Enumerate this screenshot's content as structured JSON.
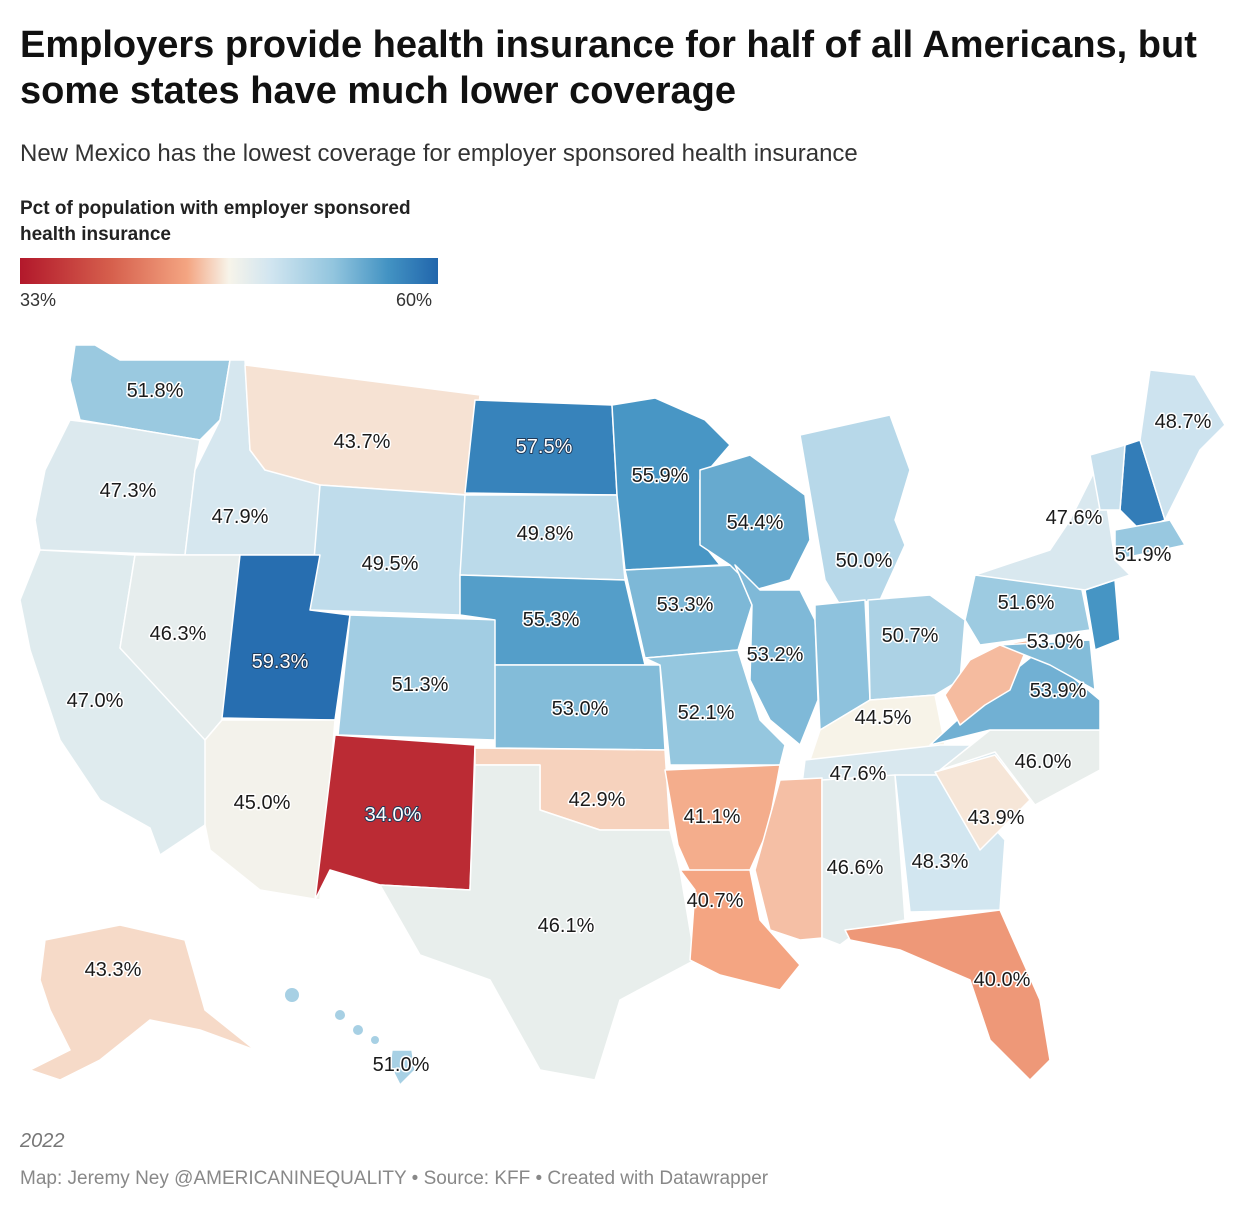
{
  "title": "Employers provide health insurance for half of all Americans, but some states have much lower coverage",
  "subtitle": "New Mexico has the lowest coverage for employer sponsored health insurance",
  "legend": {
    "title": "Pct of population with employer sponsored health insurance",
    "min_label": "33%",
    "max_label": "60%",
    "colors": [
      "#b2182b",
      "#d6604d",
      "#f4a582",
      "#f7f4ea",
      "#d1e5f0",
      "#92c5de",
      "#4393c3",
      "#2166ac"
    ]
  },
  "footer": {
    "year": "2022",
    "credit": "Map: Jeremy Ney @AMERICANINEQUALITY • Source: KFF • Created with Datawrapper"
  },
  "states": [
    {
      "id": "WA",
      "value": 51.8,
      "label": "51.8%"
    },
    {
      "id": "OR",
      "value": 47.3,
      "label": "47.3%"
    },
    {
      "id": "CA",
      "value": 47.0,
      "label": "47.0%"
    },
    {
      "id": "ID",
      "value": 47.9,
      "label": "47.9%"
    },
    {
      "id": "NV",
      "value": 46.3,
      "label": "46.3%"
    },
    {
      "id": "MT",
      "value": 43.7,
      "label": "43.7%"
    },
    {
      "id": "WY",
      "value": 49.5,
      "label": "49.5%"
    },
    {
      "id": "UT",
      "value": 59.3,
      "label": "59.3%"
    },
    {
      "id": "AZ",
      "value": 45.0,
      "label": "45.0%"
    },
    {
      "id": "CO",
      "value": 51.3,
      "label": "51.3%"
    },
    {
      "id": "NM",
      "value": 34.0,
      "label": "34.0%"
    },
    {
      "id": "ND",
      "value": 57.5,
      "label": "57.5%"
    },
    {
      "id": "SD",
      "value": 49.8,
      "label": "49.8%"
    },
    {
      "id": "NE",
      "value": 55.3,
      "label": "55.3%"
    },
    {
      "id": "KS",
      "value": 53.0,
      "label": "53.0%"
    },
    {
      "id": "OK",
      "value": 42.9,
      "label": "42.9%"
    },
    {
      "id": "TX",
      "value": 46.1,
      "label": "46.1%"
    },
    {
      "id": "MN",
      "value": 55.9,
      "label": "55.9%"
    },
    {
      "id": "IA",
      "value": 53.3,
      "label": "53.3%"
    },
    {
      "id": "MO",
      "value": 52.1,
      "label": "52.1%"
    },
    {
      "id": "AR",
      "value": 41.1,
      "label": "41.1%"
    },
    {
      "id": "LA",
      "value": 40.7,
      "label": "40.7%"
    },
    {
      "id": "WI",
      "value": 54.4,
      "label": "54.4%"
    },
    {
      "id": "IL",
      "value": 53.2,
      "label": "53.2%"
    },
    {
      "id": "MI",
      "value": 50.0,
      "label": "50.0%"
    },
    {
      "id": "IN",
      "value": null,
      "label": ""
    },
    {
      "id": "OH",
      "value": 50.7,
      "label": "50.7%"
    },
    {
      "id": "KY",
      "value": 44.5,
      "label": "44.5%"
    },
    {
      "id": "TN",
      "value": 47.6,
      "label": "47.6%"
    },
    {
      "id": "MS",
      "value": null,
      "label": ""
    },
    {
      "id": "AL",
      "value": 46.6,
      "label": "46.6%"
    },
    {
      "id": "GA",
      "value": 48.3,
      "label": "48.3%"
    },
    {
      "id": "FL",
      "value": 40.0,
      "label": "40.0%"
    },
    {
      "id": "SC",
      "value": 43.9,
      "label": "43.9%"
    },
    {
      "id": "NC",
      "value": 46.0,
      "label": "46.0%"
    },
    {
      "id": "VA",
      "value": 53.9,
      "label": "53.9%"
    },
    {
      "id": "WV",
      "value": null,
      "label": ""
    },
    {
      "id": "PA",
      "value": 51.6,
      "label": "51.6%"
    },
    {
      "id": "MD",
      "value": 53.0,
      "label": "53.0%"
    },
    {
      "id": "NJ",
      "value": null,
      "label": ""
    },
    {
      "id": "NY",
      "value": 47.6,
      "label": "47.6%"
    },
    {
      "id": "NH",
      "value": null,
      "label": ""
    },
    {
      "id": "VT",
      "value": null,
      "label": ""
    },
    {
      "id": "MA",
      "value": 51.9,
      "label": "51.9%"
    },
    {
      "id": "ME",
      "value": 48.7,
      "label": "48.7%"
    },
    {
      "id": "AK",
      "value": 43.3,
      "label": "43.3%"
    },
    {
      "id": "HI",
      "value": 51.0,
      "label": "51.0%"
    }
  ]
}
